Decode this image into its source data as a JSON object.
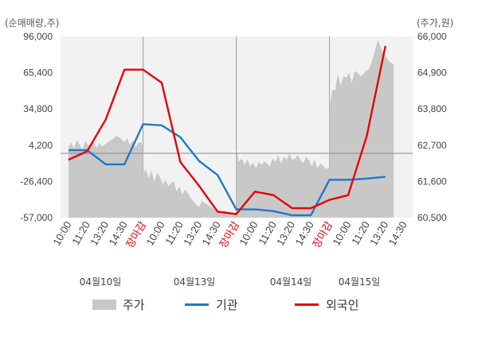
{
  "chart_data": {
    "type": "line",
    "y_left_label": "(순매매량,주)",
    "y_right_label": "(주가,원)",
    "y_left_ticks": [
      "96,000",
      "65,400",
      "34,800",
      "4,200",
      "-26,400",
      "-57,000"
    ],
    "y_right_ticks": [
      "66,000",
      "64,900",
      "63,800",
      "62,700",
      "61,600",
      "60,500"
    ],
    "ylim_left": [
      -57000,
      96000
    ],
    "ylim_right": [
      60500,
      66000
    ],
    "x_tick_labels": [
      "10:00",
      "11:20",
      "13:20",
      "14:30",
      "장마감",
      "10:00",
      "11:20",
      "13:20",
      "14:30",
      "장마감",
      "10:00",
      "11:20",
      "13:20",
      "14:30",
      "장마감",
      "10:00",
      "11:20",
      "13:20",
      "14:30"
    ],
    "x_tick_red": [
      false,
      false,
      false,
      false,
      true,
      false,
      false,
      false,
      false,
      true,
      false,
      false,
      false,
      false,
      true,
      false,
      false,
      false,
      false
    ],
    "dates": [
      "04월10일",
      "04월13일",
      "04월14일",
      "04월15일"
    ],
    "x_count": 19,
    "series": [
      {
        "name": "주가",
        "type": "area",
        "color": "#c8c8c8",
        "x": [
          0,
          0.15,
          0.3,
          0.45,
          0.6,
          0.75,
          0.9,
          1.05,
          1.2,
          1.35,
          1.5,
          1.65,
          1.8,
          1.95,
          2.1,
          2.25,
          2.4,
          2.55,
          2.7,
          2.85,
          3.0,
          3.15,
          3.3,
          3.45,
          3.6,
          3.75,
          3.9,
          4.0,
          4.0,
          4.15,
          4.3,
          4.45,
          4.6,
          4.75,
          4.9,
          5.05,
          5.2,
          5.35,
          5.5,
          5.65,
          5.8,
          5.95,
          6.1,
          6.25,
          6.4,
          6.55,
          6.7,
          6.85,
          7.0,
          7.15,
          7.3,
          7.45,
          7.6,
          7.75,
          7.9,
          8.05,
          8.2,
          8.35,
          8.5,
          8.65,
          8.8,
          8.95,
          9.0,
          9.0,
          9.15,
          9.3,
          9.45,
          9.6,
          9.75,
          9.9,
          10.05,
          10.2,
          10.35,
          10.5,
          10.65,
          10.8,
          10.95,
          11.1,
          11.25,
          11.4,
          11.55,
          11.7,
          11.85,
          12.0,
          12.15,
          12.3,
          12.45,
          12.6,
          12.75,
          12.9,
          13.05,
          13.2,
          13.35,
          13.5,
          13.65,
          13.8,
          13.95,
          14.0,
          14.0,
          14.15,
          14.3,
          14.45,
          14.6,
          14.75,
          14.9,
          15.05,
          15.2,
          15.35,
          15.5,
          15.65,
          15.8,
          15.95,
          16.1,
          16.25,
          16.4,
          16.6,
          16.8,
          17.0,
          17.2,
          17.45
        ],
        "values": [
          62650,
          62780,
          62600,
          62860,
          62720,
          62550,
          62830,
          62680,
          62760,
          62800,
          62600,
          62760,
          62660,
          62720,
          62780,
          62850,
          62900,
          62980,
          62950,
          62880,
          62780,
          62920,
          62700,
          62860,
          62650,
          62780,
          62800,
          62650,
          61820,
          61980,
          61700,
          61930,
          61580,
          61860,
          61750,
          61500,
          61650,
          61450,
          61550,
          61600,
          61300,
          61450,
          61200,
          61350,
          61250,
          61100,
          61000,
          60900,
          60820,
          61000,
          60950,
          60900,
          60850,
          60780,
          60700,
          60650,
          60600,
          60720,
          60650,
          60600,
          60580,
          60600,
          60600,
          62550,
          62200,
          62300,
          62100,
          62280,
          62050,
          62180,
          62000,
          62200,
          62100,
          62220,
          62150,
          62050,
          62300,
          62200,
          62400,
          62150,
          62350,
          62250,
          62450,
          62250,
          62300,
          62400,
          62250,
          62150,
          62350,
          62250,
          62050,
          62280,
          62000,
          62150,
          62080,
          61980,
          62020,
          62000,
          63800,
          64400,
          64350,
          64880,
          64500,
          64800,
          64750,
          64900,
          64600,
          64950,
          64900,
          64800,
          64850,
          64950,
          65000,
          65200,
          65500,
          65900,
          65600,
          65400,
          65250,
          65150
        ]
      },
      {
        "name": "기관",
        "type": "line",
        "color": "#1f78c8",
        "x": [
          0,
          1,
          2,
          3,
          4,
          5,
          6,
          7,
          8,
          9,
          10,
          11,
          12,
          13,
          14,
          15,
          16,
          17
        ],
        "values": [
          0,
          0,
          -12000,
          -12000,
          22000,
          21000,
          11000,
          -9000,
          -21000,
          -50000,
          -50000,
          -51500,
          -55000,
          -55000,
          -25000,
          -25000,
          -24000,
          -22500
        ]
      },
      {
        "name": "외국인",
        "type": "line",
        "color": "#e8000b",
        "x": [
          0,
          1,
          2,
          3,
          4,
          5,
          6,
          7,
          8,
          9,
          10,
          11,
          12,
          13,
          14,
          15,
          16,
          17
        ],
        "values": [
          -8000,
          -1000,
          26000,
          68000,
          68000,
          57000,
          -10000,
          -30000,
          -52000,
          -54000,
          -35000,
          -38000,
          -49000,
          -49000,
          -42000,
          -38000,
          12000,
          88000
        ]
      }
    ],
    "legend": [
      "주가",
      "기관",
      "외국인"
    ],
    "grid": false
  }
}
